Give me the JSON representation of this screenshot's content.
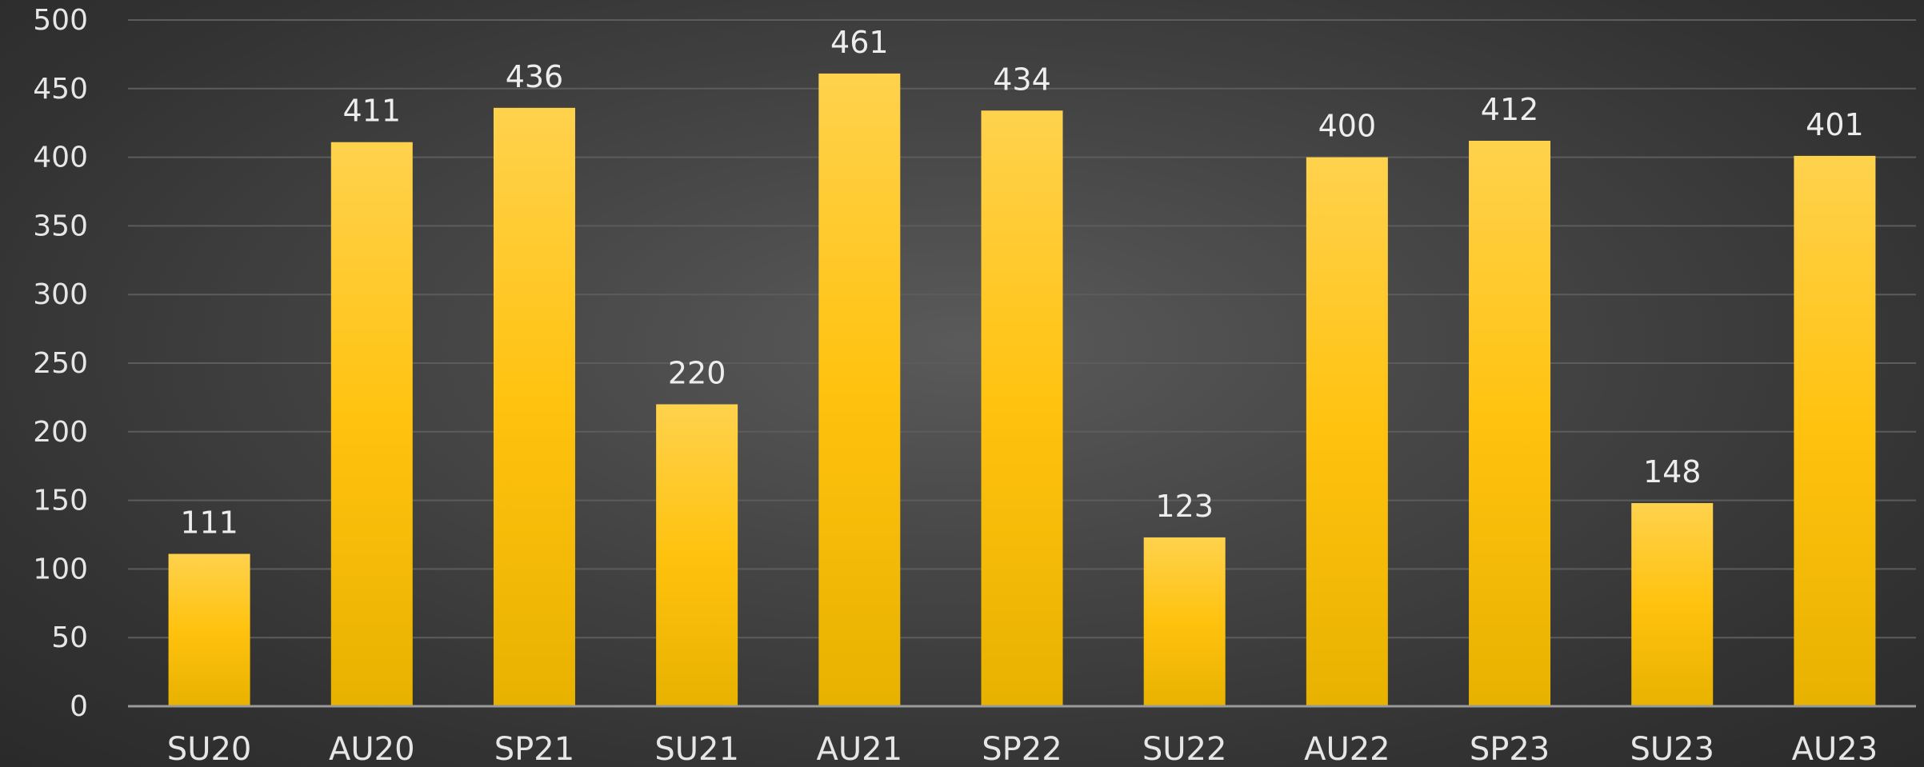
{
  "chart_data": {
    "type": "bar",
    "categories": [
      "SU20",
      "AU20",
      "SP21",
      "SU21",
      "AU21",
      "SP22",
      "SU22",
      "AU22",
      "SP23",
      "SU23",
      "AU23"
    ],
    "values": [
      111,
      411,
      436,
      220,
      461,
      434,
      123,
      400,
      412,
      148,
      401
    ],
    "ylim": [
      0,
      500
    ],
    "yticks": [
      0,
      50,
      100,
      150,
      200,
      250,
      300,
      350,
      400,
      450,
      500
    ],
    "grid": true,
    "legend": "none",
    "data_labels": true,
    "colors": {
      "bar_top": "#ffd24d",
      "bar_mid": "#ffc20e",
      "bar_bottom": "#e8b200",
      "gridline": "#5c5c5c",
      "axis": "#9a9a9a",
      "text": "#e6e6e6"
    }
  }
}
